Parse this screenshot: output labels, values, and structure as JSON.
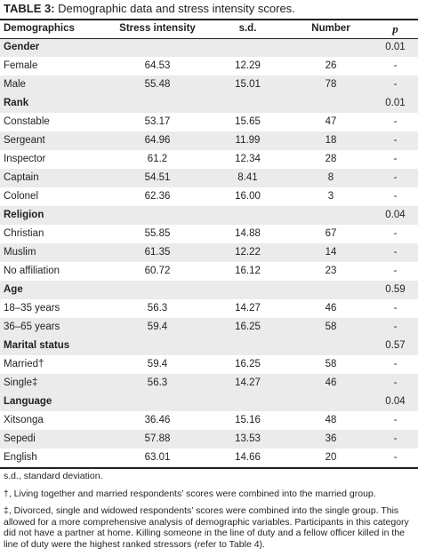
{
  "caption": {
    "label": "TABLE 3:",
    "text": " Demographic data and stress intensity scores."
  },
  "headers": [
    "Demographics",
    "Stress intensity",
    "s.d.",
    "Number",
    "p"
  ],
  "rows": [
    {
      "type": "group",
      "name": "Gender",
      "p": "0.01"
    },
    {
      "type": "item",
      "name": "Female",
      "si": "64.53",
      "sd": "12.29",
      "n": "26",
      "p": "-"
    },
    {
      "type": "item",
      "name": "Male",
      "si": "55.48",
      "sd": "15.01",
      "n": "78",
      "p": "-"
    },
    {
      "type": "group",
      "name": "Rank",
      "p": "0.01"
    },
    {
      "type": "item",
      "name": "Constable",
      "si": "53.17",
      "sd": "15.65",
      "n": "47",
      "p": "-"
    },
    {
      "type": "item",
      "name": "Sergeant",
      "si": "64.96",
      "sd": "11.99",
      "n": "18",
      "p": "-"
    },
    {
      "type": "item",
      "name": "Inspector",
      "si": "61.2",
      "sd": "12.34",
      "n": "28",
      "p": "-"
    },
    {
      "type": "item",
      "name": "Captain",
      "si": "54.51",
      "sd": "8.41",
      "n": "8",
      "p": "-"
    },
    {
      "type": "item",
      "name": "Colonel",
      "si": "62.36",
      "sd": "16.00",
      "n": "3",
      "p": "-"
    },
    {
      "type": "group",
      "name": "Religion",
      "p": "0.04"
    },
    {
      "type": "item",
      "name": "Christian",
      "si": "55.85",
      "sd": "14.88",
      "n": "67",
      "p": "-"
    },
    {
      "type": "item",
      "name": "Muslim",
      "si": "61.35",
      "sd": "12.22",
      "n": "14",
      "p": "-"
    },
    {
      "type": "item",
      "name": "No affiliation",
      "si": "60.72",
      "sd": "16.12",
      "n": "23",
      "p": "-"
    },
    {
      "type": "group",
      "name": "Age",
      "p": "0.59"
    },
    {
      "type": "item",
      "name": "18–35 years",
      "si": "56.3",
      "sd": "14.27",
      "n": "46",
      "p": "-"
    },
    {
      "type": "item",
      "name": "36–65 years",
      "si": "59.4",
      "sd": "16.25",
      "n": "58",
      "p": "-"
    },
    {
      "type": "group",
      "name": "Marital status",
      "p": "0.57"
    },
    {
      "type": "item",
      "name": "Married†",
      "si": "59.4",
      "sd": "16.25",
      "n": "58",
      "p": "-"
    },
    {
      "type": "item",
      "name": "Single‡",
      "si": "56.3",
      "sd": "14.27",
      "n": "46",
      "p": "-"
    },
    {
      "type": "group",
      "name": "Language",
      "p": "0.04"
    },
    {
      "type": "item",
      "name": "Xitsonga",
      "si": "36.46",
      "sd": "15.16",
      "n": "48",
      "p": "-"
    },
    {
      "type": "item",
      "name": "Sepedi",
      "si": "57.88",
      "sd": "13.53",
      "n": "36",
      "p": "-"
    },
    {
      "type": "item",
      "name": "English",
      "si": "63.01",
      "sd": "14.66",
      "n": "20",
      "p": "-"
    }
  ],
  "notes": [
    "s.d., standard deviation.",
    "†, Living together and married respondents’ scores were combined into the married group.",
    "‡, Divorced, single and widowed respondents’ scores were combined into the single group. This allowed for a more comprehensive analysis of demographic variables. Participants in this category did not have a partner at home. Killing someone in the line of duty and a fellow officer killed in the line of duty were the highest ranked stressors (refer to Table 4)."
  ]
}
